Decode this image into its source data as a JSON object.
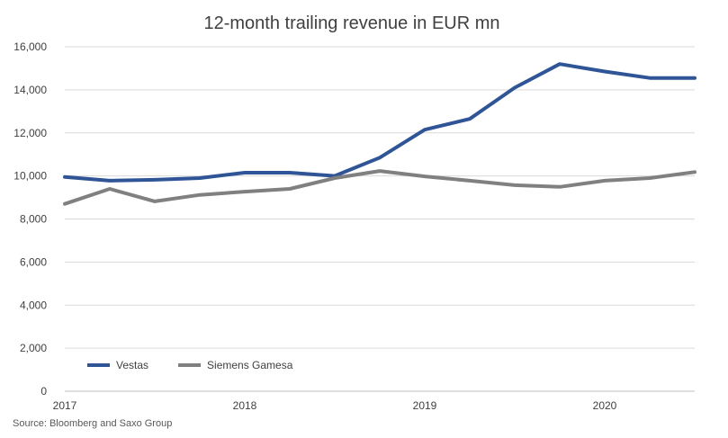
{
  "chart_data": {
    "type": "line",
    "title": "12-month trailing revenue in EUR mn",
    "xlabel": "",
    "ylabel": "",
    "x_tick_labels": [
      "2017",
      "2018",
      "2019",
      "2020"
    ],
    "xlim": [
      2017.0,
      2020.5
    ],
    "ylim": [
      0,
      16000
    ],
    "yticks": [
      0,
      2000,
      4000,
      6000,
      8000,
      10000,
      12000,
      14000,
      16000
    ],
    "ytick_labels": [
      "0",
      "2,000",
      "4,000",
      "6,000",
      "8,000",
      "10,000",
      "12,000",
      "14,000",
      "16,000"
    ],
    "grid": "horizontal",
    "legend_position": "bottom-left",
    "x": [
      2017.0,
      2017.25,
      2017.5,
      2017.75,
      2018.0,
      2018.25,
      2018.5,
      2018.75,
      2019.0,
      2019.25,
      2019.5,
      2019.75,
      2020.0,
      2020.25,
      2020.5
    ],
    "series": [
      {
        "name": "Vestas",
        "color": "#2f5597",
        "values": [
          9950,
          9780,
          9820,
          9900,
          10150,
          10150,
          10000,
          10850,
          12150,
          12650,
          14100,
          15200,
          14850,
          14550,
          14550
        ]
      },
      {
        "name": "Siemens Gamesa",
        "color": "#808080",
        "values": [
          8700,
          9400,
          8820,
          9120,
          9270,
          9400,
          9900,
          10230,
          9980,
          9780,
          9570,
          9490,
          9780,
          9900,
          10180
        ]
      }
    ]
  },
  "footer": {
    "source": "Source: Bloomberg and Saxo Group"
  }
}
